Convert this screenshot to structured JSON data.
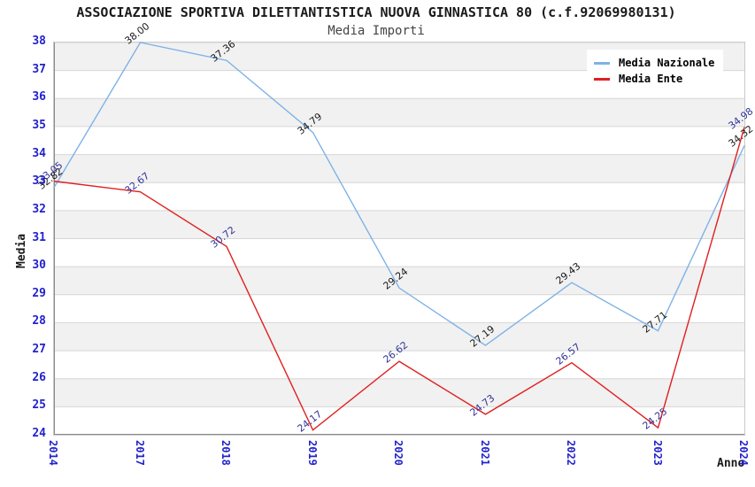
{
  "chart_data": {
    "type": "line",
    "title": "ASSOCIAZIONE SPORTIVA DILETTANTISTICA NUOVA GINNASTICA 80 (c.f.92069980131)",
    "subtitle": "Media Importi",
    "xlabel": "Anno",
    "ylabel": "Media",
    "categories": [
      "2014",
      "2017",
      "2018",
      "2019",
      "2020",
      "2021",
      "2022",
      "2023",
      "2024"
    ],
    "series": [
      {
        "name": "Media Nazionale",
        "color": "#7fb2e6",
        "label_color": "#1a1a1a",
        "values": [
          32.82,
          38.0,
          37.36,
          34.79,
          29.24,
          27.19,
          29.43,
          27.71,
          34.32
        ]
      },
      {
        "name": "Media Ente",
        "color": "#e01f1f",
        "label_color": "#333399",
        "values": [
          33.05,
          32.67,
          30.72,
          24.17,
          26.62,
          24.73,
          26.57,
          24.25,
          34.98
        ]
      }
    ],
    "ylim": [
      24,
      38
    ],
    "y_ticks": [
      38,
      37,
      36,
      35,
      34,
      33,
      32,
      31,
      30,
      29,
      28,
      27,
      26,
      25,
      24
    ],
    "grid": true,
    "band_color": "#f1f1f1",
    "gridline_color": "#d6d6d6",
    "axis_text_color": "#2222cc",
    "legend_position": "top-right"
  }
}
